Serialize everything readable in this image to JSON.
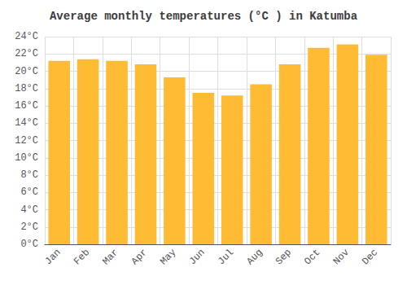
{
  "chart_data": {
    "type": "bar",
    "title": "Average monthly temperatures (°C ) in Katumba",
    "categories": [
      "Jan",
      "Feb",
      "Mar",
      "Apr",
      "May",
      "Jun",
      "Jul",
      "Aug",
      "Sep",
      "Oct",
      "Nov",
      "Dec"
    ],
    "values": [
      21.2,
      21.4,
      21.2,
      20.8,
      19.3,
      17.5,
      17.2,
      18.5,
      20.8,
      22.7,
      23.1,
      21.9
    ],
    "color": "#FFBB33",
    "ylim": [
      0,
      24
    ],
    "yticks": [
      {
        "value": 0,
        "label": "0°C"
      },
      {
        "value": 2,
        "label": "2°C"
      },
      {
        "value": 4,
        "label": "4°C"
      },
      {
        "value": 6,
        "label": "6°C"
      },
      {
        "value": 8,
        "label": "8°C"
      },
      {
        "value": 10,
        "label": "10°C"
      },
      {
        "value": 12,
        "label": "12°C"
      },
      {
        "value": 14,
        "label": "14°C"
      },
      {
        "value": 16,
        "label": "16°C"
      },
      {
        "value": 18,
        "label": "18°C"
      },
      {
        "value": 20,
        "label": "20°C"
      },
      {
        "value": 22,
        "label": "22°C"
      },
      {
        "value": 24,
        "label": "24°C"
      }
    ],
    "grid": true
  }
}
